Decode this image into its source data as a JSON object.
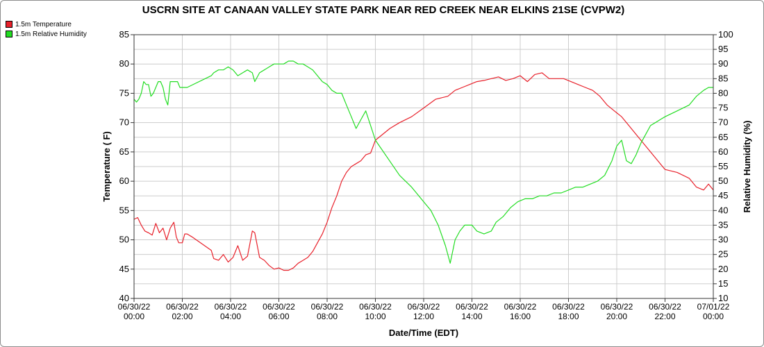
{
  "chart_data": {
    "type": "line",
    "title": "USCRN SITE AT CANAAN VALLEY STATE PARK NEAR RED CREEK NEAR ELKINS 21SE (CVPW2)",
    "xlabel": "Date/Time (EDT)",
    "ylabel_left": "Temperature ( F)",
    "ylabel_right": "Relative Humidity (%)",
    "ylim_left": [
      40,
      85
    ],
    "ylim_right": [
      10,
      100
    ],
    "xlim_hours": [
      0,
      24
    ],
    "grid": true,
    "legend_position": "top-left",
    "left_ticks": [
      "40",
      "45",
      "50",
      "55",
      "60",
      "65",
      "70",
      "75",
      "80",
      "85"
    ],
    "right_ticks": [
      "10",
      "15",
      "20",
      "25",
      "30",
      "35",
      "40",
      "45",
      "50",
      "55",
      "60",
      "65",
      "70",
      "75",
      "80",
      "85",
      "90",
      "95",
      "100"
    ],
    "x_ticks": [
      {
        "hour": 0,
        "date": "06/30/22",
        "time": "00:00"
      },
      {
        "hour": 2,
        "date": "06/30/22",
        "time": "02:00"
      },
      {
        "hour": 4,
        "date": "06/30/22",
        "time": "04:00"
      },
      {
        "hour": 6,
        "date": "06/30/22",
        "time": "06:00"
      },
      {
        "hour": 8,
        "date": "06/30/22",
        "time": "08:00"
      },
      {
        "hour": 10,
        "date": "06/30/22",
        "time": "10:00"
      },
      {
        "hour": 12,
        "date": "06/30/22",
        "time": "12:00"
      },
      {
        "hour": 14,
        "date": "06/30/22",
        "time": "14:00"
      },
      {
        "hour": 16,
        "date": "06/30/22",
        "time": "16:00"
      },
      {
        "hour": 18,
        "date": "06/30/22",
        "time": "18:00"
      },
      {
        "hour": 20,
        "date": "06/30/22",
        "time": "20:00"
      },
      {
        "hour": 22,
        "date": "06/30/22",
        "time": "22:00"
      },
      {
        "hour": 24,
        "date": "07/01/22",
        "time": "00:00"
      }
    ],
    "series": [
      {
        "name": "1.5m Temperature",
        "axis": "left",
        "color": "#e8202a",
        "x": [
          0,
          0.15,
          0.3,
          0.45,
          0.6,
          0.75,
          0.9,
          1.05,
          1.2,
          1.35,
          1.5,
          1.65,
          1.75,
          1.85,
          2.0,
          2.1,
          2.2,
          2.4,
          3.2,
          3.3,
          3.5,
          3.7,
          3.9,
          4.1,
          4.3,
          4.5,
          4.7,
          4.9,
          5.0,
          5.2,
          5.4,
          5.6,
          5.8,
          6.0,
          6.2,
          6.4,
          6.6,
          6.8,
          7.0,
          7.2,
          7.4,
          7.6,
          7.8,
          8.0,
          8.2,
          8.4,
          8.6,
          8.8,
          9.0,
          9.2,
          9.4,
          9.6,
          9.8,
          10.0,
          10.3,
          10.6,
          11.0,
          11.5,
          12.0,
          12.5,
          13.0,
          13.3,
          13.6,
          13.9,
          14.2,
          14.5,
          14.8,
          15.1,
          15.4,
          15.7,
          16.0,
          16.3,
          16.6,
          16.9,
          17.2,
          17.5,
          17.8,
          18.1,
          18.4,
          18.7,
          19.0,
          19.3,
          19.6,
          19.9,
          20.2,
          20.5,
          20.8,
          21.1,
          21.4,
          21.7,
          22.0,
          22.5,
          23.0,
          23.3,
          23.6,
          23.8,
          24.0
        ],
        "values": [
          53.5,
          53.8,
          52.5,
          51.5,
          51.2,
          50.8,
          52.8,
          51.2,
          52.0,
          50.0,
          52.0,
          53.0,
          50.5,
          49.5,
          49.5,
          51.0,
          51.0,
          50.5,
          48.2,
          46.8,
          46.5,
          47.5,
          46.2,
          47.0,
          49.0,
          46.5,
          47.2,
          51.5,
          51.2,
          47.0,
          46.5,
          45.6,
          45.0,
          45.2,
          44.8,
          44.8,
          45.2,
          46.0,
          46.5,
          47.0,
          48.0,
          49.5,
          51.0,
          53.0,
          55.5,
          57.5,
          60.0,
          61.5,
          62.5,
          63.0,
          63.5,
          64.5,
          64.8,
          67.0,
          68.0,
          69.0,
          70.0,
          71.0,
          72.5,
          74.0,
          74.5,
          75.5,
          76.0,
          76.5,
          77.0,
          77.2,
          77.5,
          77.8,
          77.2,
          77.5,
          78.0,
          77.0,
          78.2,
          78.5,
          77.5,
          77.5,
          77.5,
          77.0,
          76.5,
          76.0,
          75.5,
          74.5,
          73.0,
          72.0,
          71.0,
          69.5,
          68.0,
          66.5,
          65.0,
          63.5,
          62.0,
          61.5,
          60.5,
          59.0,
          58.5,
          59.5,
          58.5
        ]
      },
      {
        "name": "1.5m Relative Humidity",
        "axis": "right",
        "color": "#22dd22",
        "x": [
          0,
          0.1,
          0.2,
          0.3,
          0.4,
          0.5,
          0.6,
          0.7,
          0.8,
          0.9,
          1.0,
          1.1,
          1.2,
          1.3,
          1.4,
          1.5,
          1.6,
          1.7,
          1.8,
          1.9,
          2.0,
          2.2,
          3.2,
          3.3,
          3.5,
          3.7,
          3.9,
          4.1,
          4.3,
          4.5,
          4.7,
          4.9,
          5.0,
          5.2,
          5.4,
          5.6,
          5.8,
          6.0,
          6.2,
          6.4,
          6.6,
          6.8,
          7.0,
          7.2,
          7.4,
          7.6,
          7.8,
          8.0,
          8.2,
          8.4,
          8.6,
          8.8,
          9.0,
          9.2,
          9.4,
          9.6,
          9.8,
          10.0,
          10.5,
          11.0,
          11.5,
          11.8,
          12.0,
          12.3,
          12.6,
          12.9,
          13.1,
          13.3,
          13.5,
          13.7,
          14.0,
          14.2,
          14.5,
          14.8,
          15.0,
          15.3,
          15.6,
          15.9,
          16.2,
          16.5,
          16.8,
          17.1,
          17.4,
          17.7,
          18.0,
          18.3,
          18.6,
          18.9,
          19.2,
          19.5,
          19.8,
          20.0,
          20.2,
          20.4,
          20.6,
          20.8,
          21.0,
          21.2,
          21.4,
          21.6,
          21.8,
          22.0,
          22.5,
          23.0,
          23.3,
          23.6,
          23.8,
          24.0
        ],
        "values": [
          78,
          77,
          78,
          80,
          84,
          83,
          83,
          79,
          80,
          82,
          84,
          84,
          82,
          78,
          76,
          84,
          84,
          84,
          84,
          82,
          82,
          82,
          86,
          87,
          88,
          88,
          89,
          88,
          86,
          87,
          88,
          87,
          84,
          87,
          88,
          89,
          90,
          90,
          90,
          91,
          91,
          90,
          90,
          89,
          88,
          86,
          84,
          83,
          81,
          80,
          80,
          76,
          72,
          68,
          71,
          74,
          69,
          64,
          58,
          52,
          48,
          45,
          43,
          40,
          35,
          28,
          22,
          30,
          33,
          35,
          35,
          33,
          32,
          33,
          36,
          38,
          41,
          43,
          44,
          44,
          45,
          45,
          46,
          46,
          47,
          48,
          48,
          49,
          50,
          52,
          57,
          62,
          64,
          57,
          56,
          59,
          63,
          66,
          69,
          70,
          71,
          72,
          74,
          76,
          79,
          81,
          82,
          82
        ]
      }
    ]
  }
}
